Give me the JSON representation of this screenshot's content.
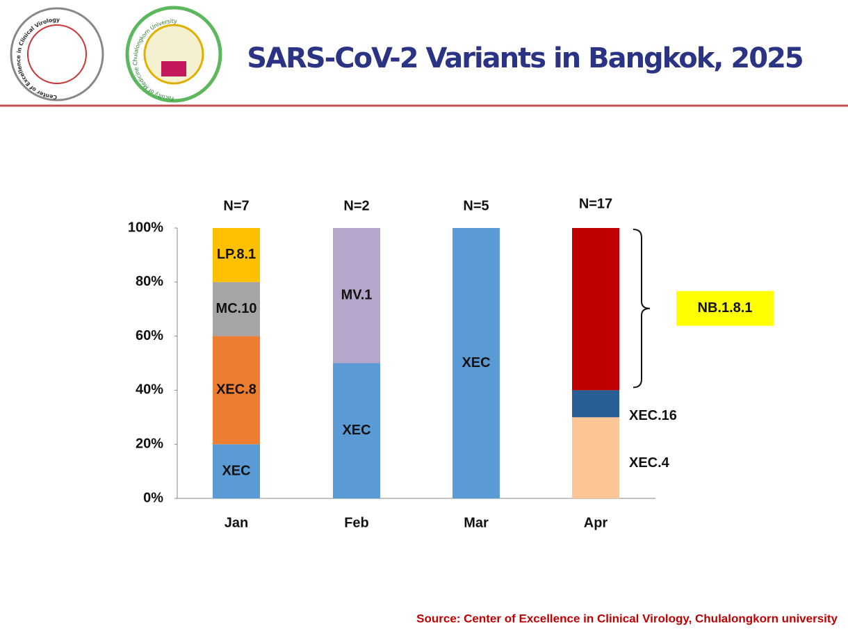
{
  "header": {
    "title": "SARS-CoV-2 Variants in Bangkok, 2025",
    "logos": [
      "Center of Excellence in Clinical Virology",
      "Faculty of Medicine Chulalongkorn University"
    ]
  },
  "chart_data": {
    "type": "stacked_bar",
    "categories": [
      "Jan",
      "Feb",
      "Mar",
      "Apr"
    ],
    "n_labels": [
      "N=7",
      "N=2",
      "N=5",
      "N=17"
    ],
    "series": [
      {
        "name": "XEC",
        "color": "#5b9bd5",
        "values": [
          20,
          50,
          100,
          null
        ]
      },
      {
        "name": "XEC.8",
        "color": "#ed7d31",
        "values": [
          40,
          null,
          null,
          null
        ]
      },
      {
        "name": "MC.10",
        "color": "#a5a5a5",
        "values": [
          20,
          null,
          null,
          null
        ]
      },
      {
        "name": "LP.8.1",
        "color": "#ffc000",
        "values": [
          20,
          null,
          null,
          null
        ]
      },
      {
        "name": "MV.1",
        "color": "#b4a7cb",
        "values": [
          null,
          50,
          null,
          null
        ]
      },
      {
        "name": "XEC.4",
        "color": "#fcc596",
        "values": [
          null,
          null,
          null,
          30
        ]
      },
      {
        "name": "XEC.16",
        "color": "#2a5f95",
        "values": [
          null,
          null,
          null,
          10
        ]
      },
      {
        "name": "NB.1.8.1",
        "color": "#c00000",
        "values": [
          null,
          null,
          null,
          60
        ]
      }
    ],
    "ylim": [
      0,
      100
    ],
    "yticks": [
      {
        "value": 0,
        "label": "0%"
      },
      {
        "value": 20,
        "label": "20%"
      },
      {
        "value": 40,
        "label": "40%"
      },
      {
        "value": 60,
        "label": "60%"
      },
      {
        "value": 80,
        "label": "80%"
      },
      {
        "value": 100,
        "label": "100%"
      }
    ],
    "grid": false
  },
  "source": "Source: Center of Excellence in Clinical Virology, Chulalongkorn university"
}
